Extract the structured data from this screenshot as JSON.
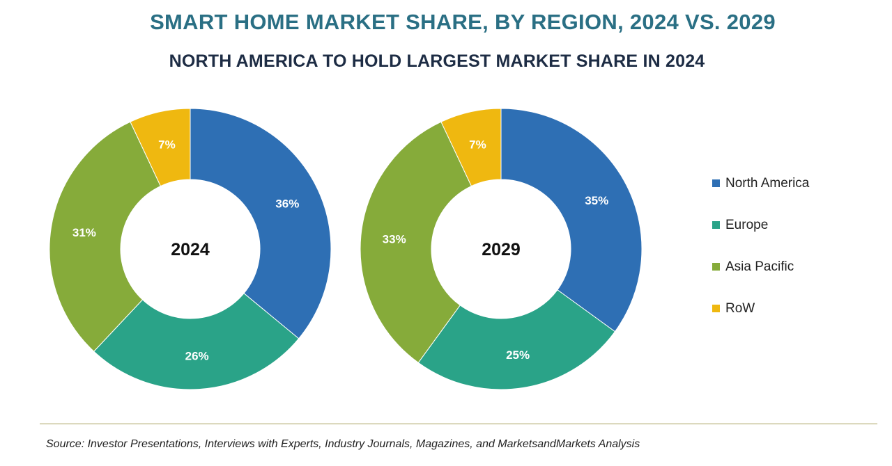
{
  "chart_data": {
    "type": "pie",
    "title": "SMART HOME MARKET SHARE, BY REGION, 2024 VS. 2029",
    "subtitle": "NORTH AMERICA TO HOLD LARGEST MARKET SHARE IN 2024",
    "categories": [
      "North America",
      "Europe",
      "Asia Pacific",
      "RoW"
    ],
    "colors": [
      "#2e6fb4",
      "#2aa388",
      "#86ab3a",
      "#efb810"
    ],
    "series": [
      {
        "name": "2024",
        "values": [
          36,
          26,
          31,
          7
        ],
        "labels": [
          "36%",
          "26%",
          "31%",
          "7%"
        ]
      },
      {
        "name": "2029",
        "values": [
          35,
          25,
          33,
          7
        ],
        "labels": [
          "35%",
          "25%",
          "33%",
          "7%"
        ]
      }
    ],
    "legend_position": "right"
  },
  "source": "Source: Investor Presentations, Interviews with Experts, Industry Journals, Magazines, and MarketsandMarkets Analysis"
}
